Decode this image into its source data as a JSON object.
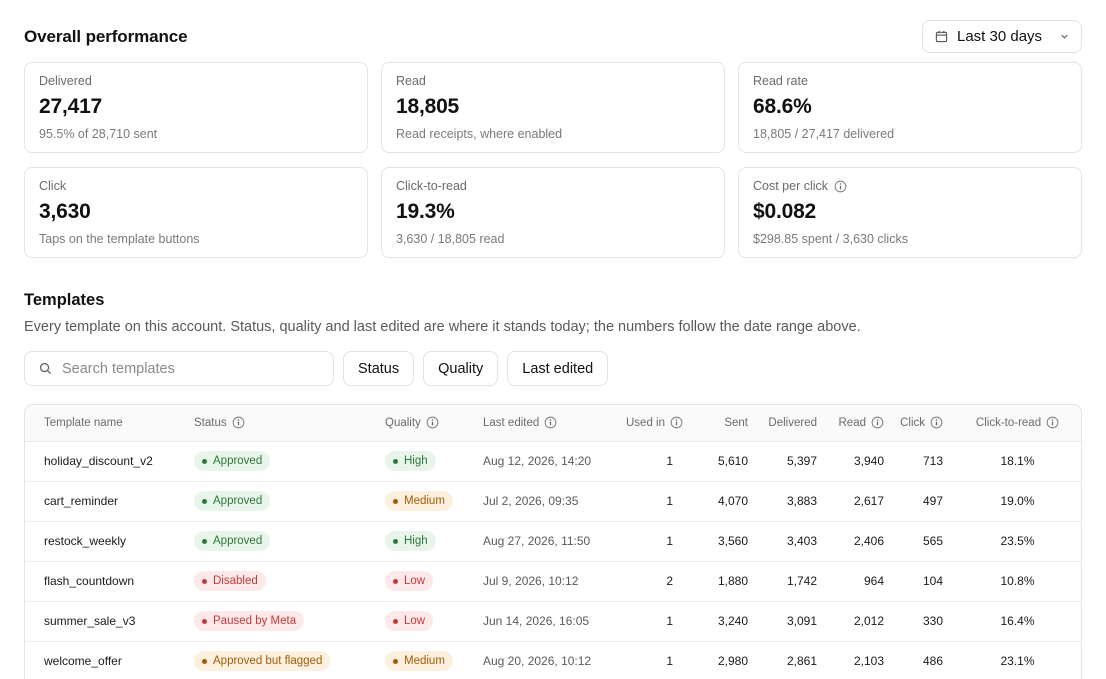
{
  "header": {
    "title": "Overall performance",
    "date_range": "Last 30 days"
  },
  "metrics": [
    {
      "label": "Delivered",
      "value": "27,417",
      "sub": "95.5% of 28,710 sent",
      "info": false
    },
    {
      "label": "Read",
      "value": "18,805",
      "sub": "Read receipts, where enabled",
      "info": false
    },
    {
      "label": "Read rate",
      "value": "68.6%",
      "sub": "18,805 / 27,417 delivered",
      "info": false
    },
    {
      "label": "Click",
      "value": "3,630",
      "sub": "Taps on the template buttons",
      "info": false
    },
    {
      "label": "Click-to-read",
      "value": "19.3%",
      "sub": "3,630 / 18,805 read",
      "info": false
    },
    {
      "label": "Cost per click",
      "value": "$0.082",
      "sub": "$298.85 spent / 3,630 clicks",
      "info": true
    }
  ],
  "templates": {
    "title": "Templates",
    "description": "Every template on this account. Status, quality and last edited are where it stands today; the numbers follow the date range above.",
    "search_placeholder": "Search templates",
    "filters": [
      "Status",
      "Quality",
      "Last edited"
    ],
    "columns": [
      {
        "label": "Template name",
        "info": false
      },
      {
        "label": "Status",
        "info": true
      },
      {
        "label": "Quality",
        "info": true
      },
      {
        "label": "Last edited",
        "info": true
      },
      {
        "label": "Used in",
        "info": true
      },
      {
        "label": "Sent",
        "info": false
      },
      {
        "label": "Delivered",
        "info": false
      },
      {
        "label": "Read",
        "info": true
      },
      {
        "label": "Click",
        "info": true
      },
      {
        "label": "Click-to-read",
        "info": true
      }
    ],
    "rows": [
      {
        "name": "holiday_discount_v2",
        "status": "Approved",
        "status_tone": "green",
        "quality": "High",
        "quality_tone": "green",
        "last_edited": "Aug 12, 2026, 14:20",
        "used_in": "1",
        "sent": "5,610",
        "delivered": "5,397",
        "read": "3,940",
        "click": "713",
        "ctr": "18.1%"
      },
      {
        "name": "cart_reminder",
        "status": "Approved",
        "status_tone": "green",
        "quality": "Medium",
        "quality_tone": "orange",
        "last_edited": "Jul 2, 2026, 09:35",
        "used_in": "1",
        "sent": "4,070",
        "delivered": "3,883",
        "read": "2,617",
        "click": "497",
        "ctr": "19.0%"
      },
      {
        "name": "restock_weekly",
        "status": "Approved",
        "status_tone": "green",
        "quality": "High",
        "quality_tone": "green",
        "last_edited": "Aug 27, 2026, 11:50",
        "used_in": "1",
        "sent": "3,560",
        "delivered": "3,403",
        "read": "2,406",
        "click": "565",
        "ctr": "23.5%"
      },
      {
        "name": "flash_countdown",
        "status": "Disabled",
        "status_tone": "red",
        "quality": "Low",
        "quality_tone": "red",
        "last_edited": "Jul 9, 2026, 10:12",
        "used_in": "2",
        "sent": "1,880",
        "delivered": "1,742",
        "read": "964",
        "click": "104",
        "ctr": "10.8%"
      },
      {
        "name": "summer_sale_v3",
        "status": "Paused by Meta",
        "status_tone": "red",
        "quality": "Low",
        "quality_tone": "red",
        "last_edited": "Jun 14, 2026, 16:05",
        "used_in": "1",
        "sent": "3,240",
        "delivered": "3,091",
        "read": "2,012",
        "click": "330",
        "ctr": "16.4%"
      },
      {
        "name": "welcome_offer",
        "status": "Approved but flagged",
        "status_tone": "orange",
        "quality": "Medium",
        "quality_tone": "orange",
        "last_edited": "Aug 20, 2026, 10:12",
        "used_in": "1",
        "sent": "2,980",
        "delivered": "2,861",
        "read": "2,103",
        "click": "486",
        "ctr": "23.1%"
      }
    ]
  },
  "icons": {
    "calendar": "calendar-icon",
    "chevron": "chevron-down-icon",
    "search": "search-icon",
    "info": "info-icon"
  }
}
